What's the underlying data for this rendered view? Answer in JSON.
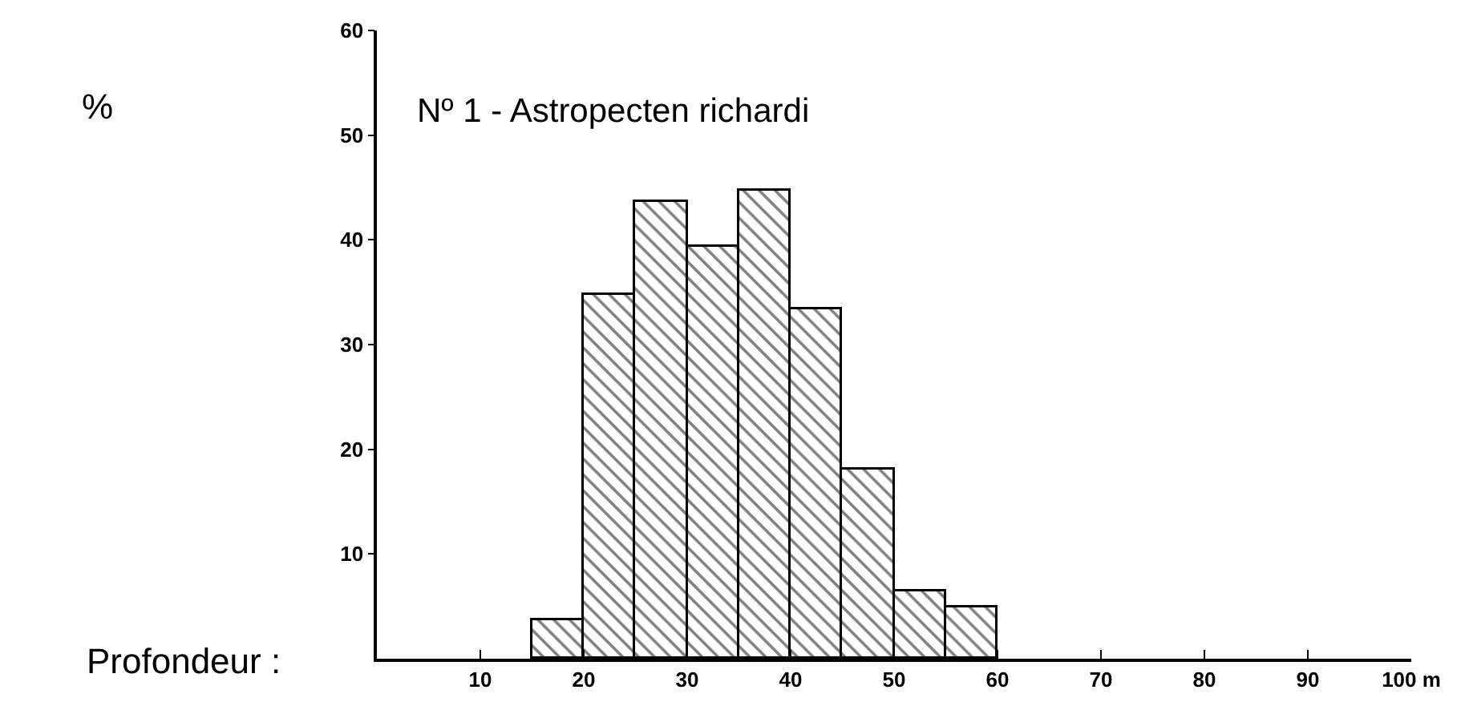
{
  "chart_data": {
    "type": "histogram",
    "title": "Nº 1 - Astropecten richardi",
    "xlabel": "Profondeur :",
    "annotations": [
      "%"
    ],
    "bins": [
      15,
      20,
      25,
      30,
      35,
      40,
      45,
      50,
      55,
      60
    ],
    "values": [
      3.6,
      34.7,
      43.6,
      39.4,
      44.7,
      33.3,
      18.1,
      6.4,
      4.9
    ],
    "color": "#000000",
    "xlim": [
      0,
      100
    ],
    "xticks": [
      10,
      20,
      30,
      40,
      50,
      60,
      70,
      80,
      90,
      {
        "value": 100,
        "label": "100 m"
      }
    ],
    "ylim": [
      0,
      60
    ],
    "yticks": [
      10,
      20,
      30,
      40,
      50,
      60
    ]
  }
}
